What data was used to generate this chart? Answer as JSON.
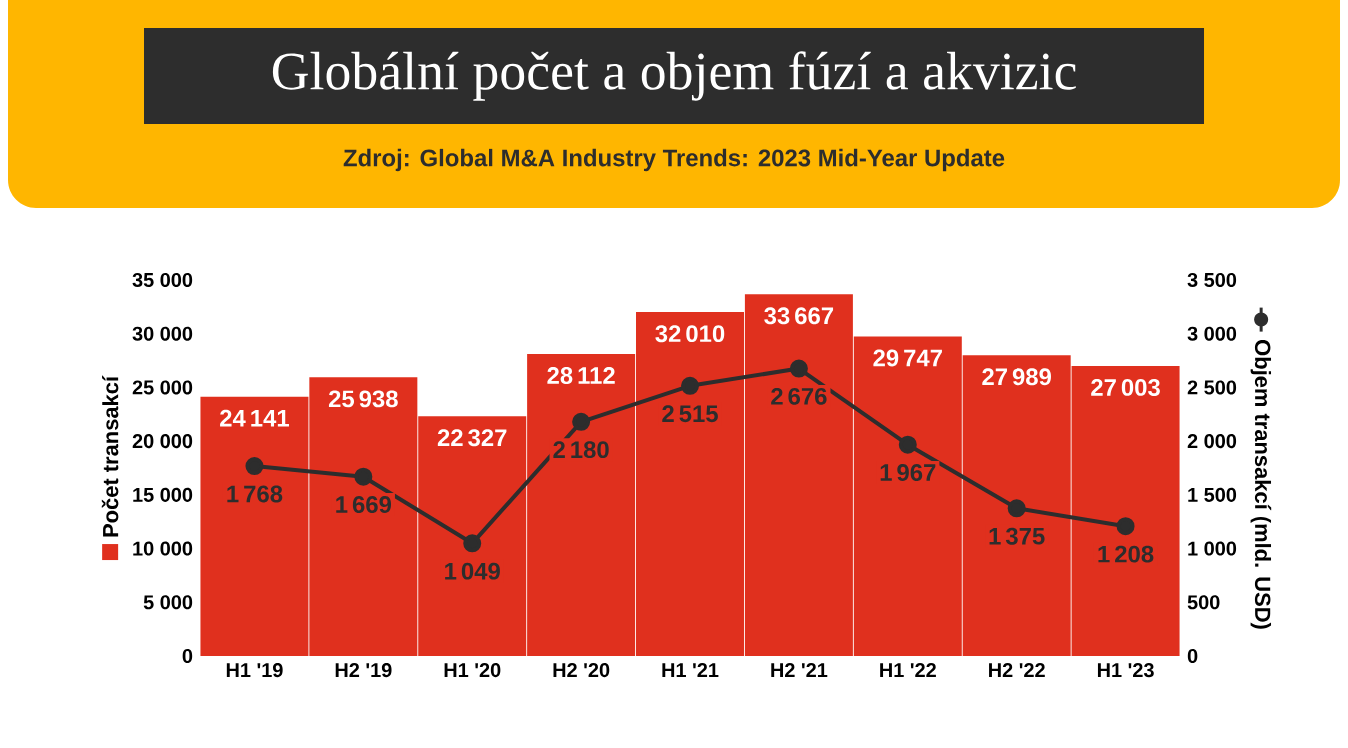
{
  "chart_data": {
    "type": "bar",
    "title": "Globální počet a objem fúzí a akvizic",
    "subtitle": "Zdroj: Global M&A Industry Trends: 2023 Mid-Year Update",
    "categories": [
      "H1 '19",
      "H2 '19",
      "H1 '20",
      "H2 '20",
      "H1 '21",
      "H2 '21",
      "H1 '22",
      "H2 '22",
      "H1 '23"
    ],
    "series": [
      {
        "color": "#e0301e",
        "values": [
          24141,
          25938,
          22327,
          28112,
          32010,
          33667,
          29747,
          27989,
          27003
        ]
      },
      {
        "type": "line",
        "axis": "y2",
        "color": "#2d2d2d",
        "marker": "circle",
        "line_style": "solid",
        "values": [
          1768,
          1669,
          1049,
          2180,
          2515,
          2676,
          1967,
          1375,
          1208
        ]
      }
    ],
    "ylabel": "Počet transakcí",
    "y2label": "Objem transakcí (mld. USD)",
    "ylim": [
      0,
      35000
    ],
    "yticks": [
      0,
      {
        "value": 5000,
        "label": "5 000"
      },
      {
        "value": 10000,
        "label": "10 000"
      },
      {
        "value": 15000,
        "label": "15 000"
      },
      {
        "value": 20000,
        "label": "20 000"
      },
      {
        "value": 25000,
        "label": "25 000"
      },
      {
        "value": 30000,
        "label": "30 000"
      },
      {
        "value": 35000,
        "label": "35 000"
      }
    ],
    "y2lim": [
      0,
      3500
    ],
    "y2ticks": [
      0,
      500,
      {
        "value": 1000,
        "label": "1 000"
      },
      {
        "value": 1500,
        "label": "1 500"
      },
      {
        "value": 2000,
        "label": "2 000"
      },
      {
        "value": 2500,
        "label": "2 500"
      },
      {
        "value": 3000,
        "label": "3 000"
      },
      {
        "value": 3500,
        "label": "3 500"
      }
    ],
    "data_labels": true,
    "grid": false
  }
}
